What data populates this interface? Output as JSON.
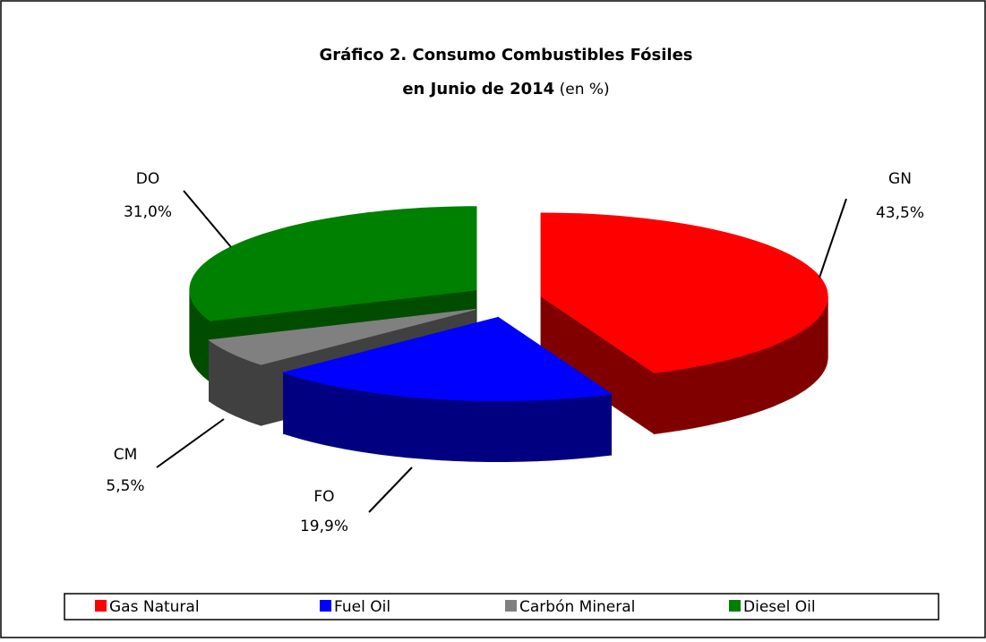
{
  "chart_data": {
    "type": "pie3d",
    "title": "Gráfico 2. Consumo Combustibles Fósiles",
    "subtitle": "en Junio de 2014",
    "subtitle_note": "(en %)",
    "categories": [
      "Gas Natural",
      "Fuel Oil",
      "Carbón Mineral",
      "Diesel Oil"
    ],
    "label_names": [
      "GN",
      "FO",
      "CM",
      "DO"
    ],
    "values": [
      43.5,
      19.9,
      5.5,
      31.0
    ],
    "value_labels": [
      "43,5%",
      "19,9%",
      "5,5%",
      "31,0%"
    ],
    "colors": [
      "#ff0000",
      "#0000ff",
      "#808080",
      "#008000"
    ],
    "side_colors": [
      "#800000",
      "#000080",
      "#404040",
      "#004d00"
    ],
    "legend": "bottom"
  }
}
